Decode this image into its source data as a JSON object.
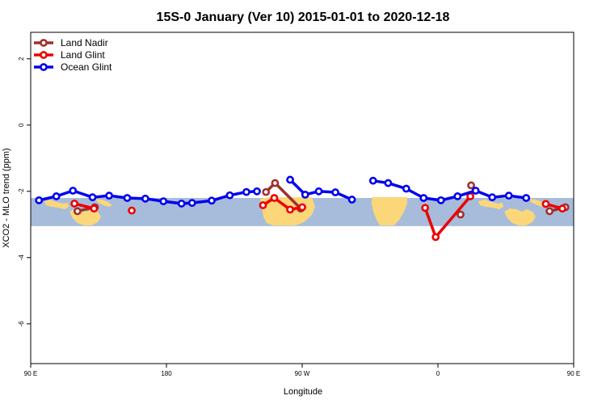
{
  "chart_data": {
    "type": "line",
    "title": "15S-0 January (Ver 10)   2015-01-01 to 2020-12-18",
    "xlabel": "Longitude",
    "ylabel": "XCO2 - MLO trend (ppm)",
    "xlim": [
      90,
      450
    ],
    "ylim": [
      -7.2,
      2.8
    ],
    "x_ticks": [
      {
        "value": 90,
        "label": "90 E"
      },
      {
        "value": 180,
        "label": "180"
      },
      {
        "value": 270,
        "label": "90 W"
      },
      {
        "value": 360,
        "label": "0"
      },
      {
        "value": 450,
        "label": "90 E"
      },
      {
        "value": 540,
        "label": "180"
      }
    ],
    "y_ticks": [
      {
        "value": 2,
        "label": "2"
      },
      {
        "value": 0,
        "label": "0"
      },
      {
        "value": -2,
        "label": "-2"
      },
      {
        "value": -4,
        "label": "-4"
      },
      {
        "value": -6,
        "label": "-6"
      }
    ],
    "legend": {
      "position": "top-left"
    },
    "grid": false,
    "map_band": {
      "lat_range_label": "15S-0",
      "y_top": -2.2,
      "y_bottom": -3.05,
      "ocean_color": "#a6bcda",
      "land_color": "#fcd77a"
    },
    "series": [
      {
        "name": "Land Nadir",
        "color": "#a0302c",
        "segments": [
          [
            [
              121,
              -2.6
            ],
            [
              132.5,
              -2.48
            ]
          ],
          [
            [
              246,
              -2.02
            ],
            [
              252,
              -1.75
            ],
            [
              269,
              -2.52
            ]
          ],
          [
            [
              375,
              -2.7
            ]
          ],
          [
            [
              382,
              -1.82
            ]
          ],
          [
            [
              434,
              -2.6
            ],
            [
              444.5,
              -2.48
            ]
          ]
        ]
      },
      {
        "name": "Land Glint",
        "color": "#ee0000",
        "segments": [
          [
            [
              119,
              -2.37
            ],
            [
              132,
              -2.52
            ]
          ],
          [
            [
              157,
              -2.58
            ]
          ],
          [
            [
              244,
              -2.42
            ],
            [
              251.5,
              -2.2
            ],
            [
              262,
              -2.55
            ],
            [
              270,
              -2.48
            ]
          ],
          [
            [
              351.5,
              -2.5
            ],
            [
              358.5,
              -3.38
            ],
            [
              381.5,
              -2.15
            ]
          ],
          [
            [
              431.5,
              -2.38
            ],
            [
              442.5,
              -2.52
            ]
          ]
        ]
      },
      {
        "name": "Ocean Glint",
        "color": "#0000ee",
        "segments": [
          [
            [
              95.5,
              -2.27
            ],
            [
              107,
              -2.15
            ],
            [
              118,
              -1.98
            ],
            [
              131,
              -2.18
            ],
            [
              142,
              -2.13
            ],
            [
              154,
              -2.2
            ],
            [
              166,
              -2.22
            ],
            [
              178,
              -2.3
            ],
            [
              190,
              -2.37
            ],
            [
              197,
              -2.35
            ],
            [
              210,
              -2.28
            ],
            [
              222,
              -2.12
            ],
            [
              233,
              -2.02
            ],
            [
              240,
              -2.0
            ]
          ],
          [
            [
              262,
              -1.65
            ],
            [
              272,
              -2.1
            ],
            [
              281,
              -2.0
            ],
            [
              292,
              -2.03
            ],
            [
              303,
              -2.25
            ]
          ],
          [
            [
              317,
              -1.68
            ],
            [
              327,
              -1.75
            ],
            [
              339,
              -1.92
            ],
            [
              350.5,
              -2.2
            ],
            [
              362,
              -2.27
            ],
            [
              373,
              -2.15
            ],
            [
              385,
              -1.98
            ],
            [
              396,
              -2.18
            ],
            [
              407,
              -2.13
            ],
            [
              418.5,
              -2.2
            ]
          ]
        ]
      }
    ]
  }
}
